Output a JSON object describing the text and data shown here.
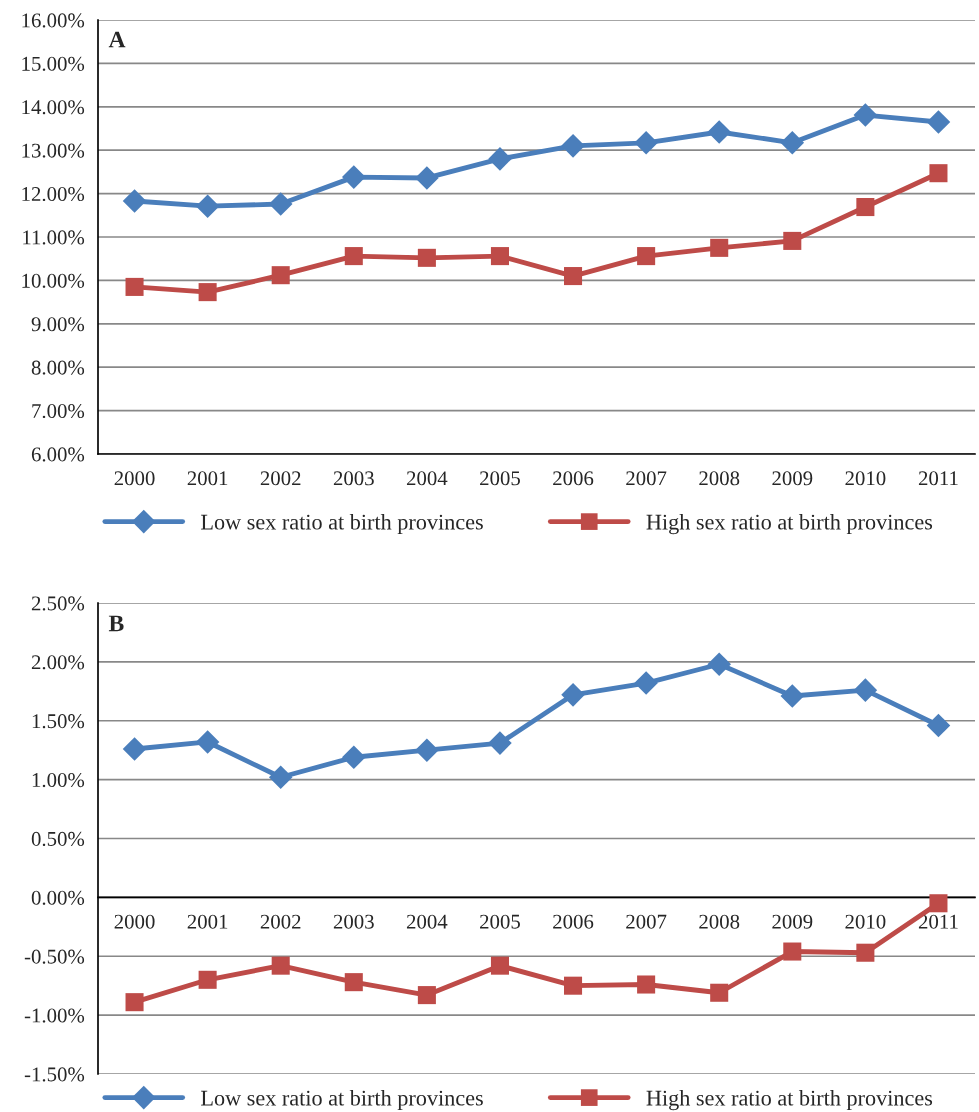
{
  "chart_data": [
    {
      "type": "line",
      "categories": [
        "2000",
        "2001",
        "2002",
        "2003",
        "2004",
        "2005",
        "2006",
        "2007",
        "2008",
        "2009",
        "2010",
        "2011"
      ],
      "series": [
        {
          "name": "Low sex ratio at birth provinces",
          "color": "#4a7ebb",
          "marker": "diamond",
          "values": [
            11.83,
            11.71,
            11.76,
            12.38,
            12.36,
            12.8,
            13.1,
            13.17,
            13.42,
            13.17,
            13.81,
            13.65
          ]
        },
        {
          "name": "High sex ratio at birth provinces",
          "color": "#be4b48",
          "marker": "square",
          "values": [
            9.85,
            9.73,
            10.12,
            10.56,
            10.52,
            10.56,
            10.1,
            10.56,
            10.75,
            10.91,
            11.69,
            12.47
          ]
        }
      ],
      "ylim": [
        6,
        16
      ],
      "yticks": [
        {
          "value": 6,
          "label": "6.00%"
        },
        {
          "value": 7,
          "label": "7.00%"
        },
        {
          "value": 8,
          "label": "8.00%"
        },
        {
          "value": 9,
          "label": "9.00%"
        },
        {
          "value": 10,
          "label": "10.00%"
        },
        {
          "value": 11,
          "label": "11.00%"
        },
        {
          "value": 12,
          "label": "12.00%"
        },
        {
          "value": 13,
          "label": "13.00%"
        },
        {
          "value": 14,
          "label": "14.00%"
        },
        {
          "value": 15,
          "label": "15.00%"
        },
        {
          "value": 16,
          "label": "16.00%"
        }
      ],
      "grid": "y",
      "legend": "bottom",
      "line_style": "solid",
      "annotations": [
        "A"
      ]
    },
    {
      "type": "line",
      "categories": [
        "2000",
        "2001",
        "2002",
        "2003",
        "2004",
        "2005",
        "2006",
        "2007",
        "2008",
        "2009",
        "2010",
        "2011"
      ],
      "series": [
        {
          "name": "Low sex ratio at birth provinces",
          "color": "#4a7ebb",
          "marker": "diamond",
          "values": [
            1.26,
            1.32,
            1.02,
            1.19,
            1.25,
            1.31,
            1.72,
            1.82,
            1.98,
            1.71,
            1.76,
            1.46
          ]
        },
        {
          "name": "High sex ratio at birth provinces",
          "color": "#be4b48",
          "marker": "square",
          "values": [
            -0.89,
            -0.7,
            -0.58,
            -0.72,
            -0.83,
            -0.58,
            -0.75,
            -0.74,
            -0.81,
            -0.46,
            -0.47,
            -0.05
          ]
        }
      ],
      "ylim": [
        -1.5,
        2.5
      ],
      "yticks": [
        {
          "value": -1.5,
          "label": "-1.50%"
        },
        {
          "value": -1,
          "label": "-1.00%"
        },
        {
          "value": -0.5,
          "label": "-0.50%"
        },
        {
          "value": 0,
          "label": "0.00%"
        },
        {
          "value": 0.5,
          "label": "0.50%"
        },
        {
          "value": 1,
          "label": "1.00%"
        },
        {
          "value": 1.5,
          "label": "1.50%"
        },
        {
          "value": 2,
          "label": "2.00%"
        },
        {
          "value": 2.5,
          "label": "2.50%"
        }
      ],
      "grid": "y",
      "legend": "bottom",
      "line_style": "solid",
      "annotations": [
        "B"
      ]
    }
  ]
}
